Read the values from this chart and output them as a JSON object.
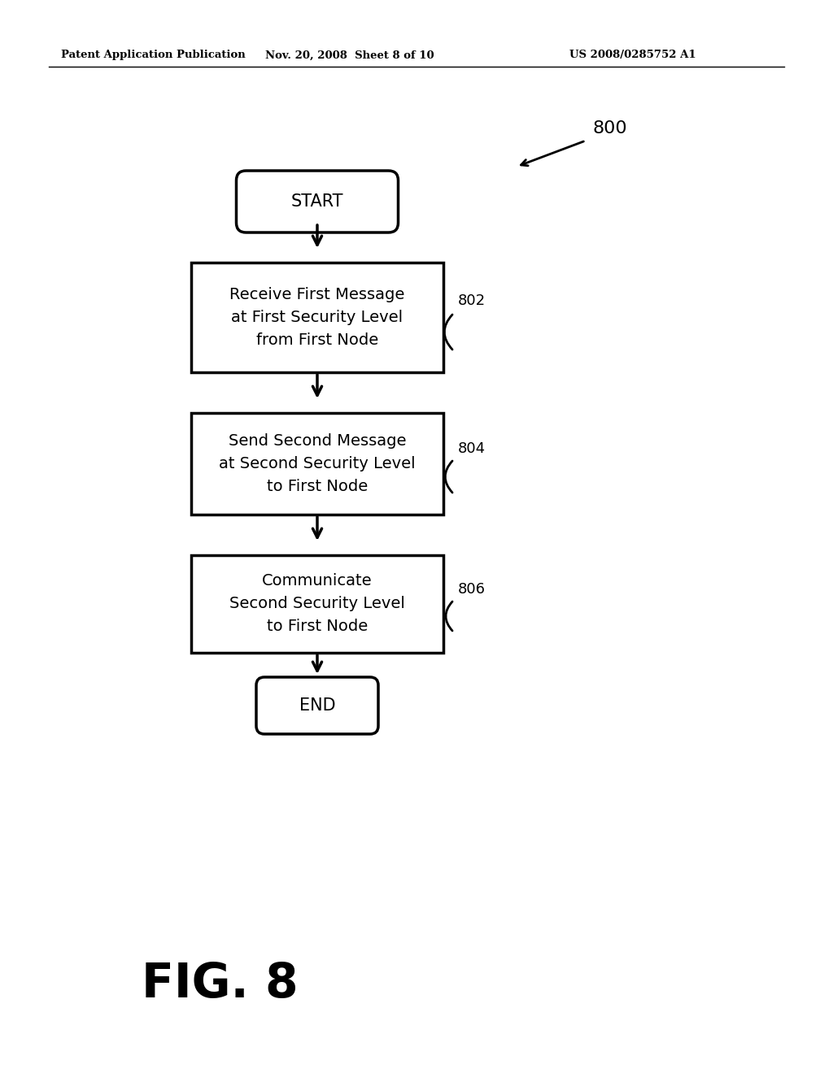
{
  "bg_color": "#ffffff",
  "header_left": "Patent Application Publication",
  "header_mid": "Nov. 20, 2008  Sheet 8 of 10",
  "header_right": "US 2008/0285752 A1",
  "fig_label": "FIG. 8",
  "fig_number": "800",
  "start_label": "START",
  "end_label": "END",
  "boxes": [
    {
      "label": "Receive First Message\nat First Security Level\nfrom First Node",
      "tag": "802"
    },
    {
      "label": "Send Second Message\nat Second Security Level\nto First Node",
      "tag": "804"
    },
    {
      "label": "Communicate\nSecond Security Level\nto First Node",
      "tag": "806"
    }
  ]
}
